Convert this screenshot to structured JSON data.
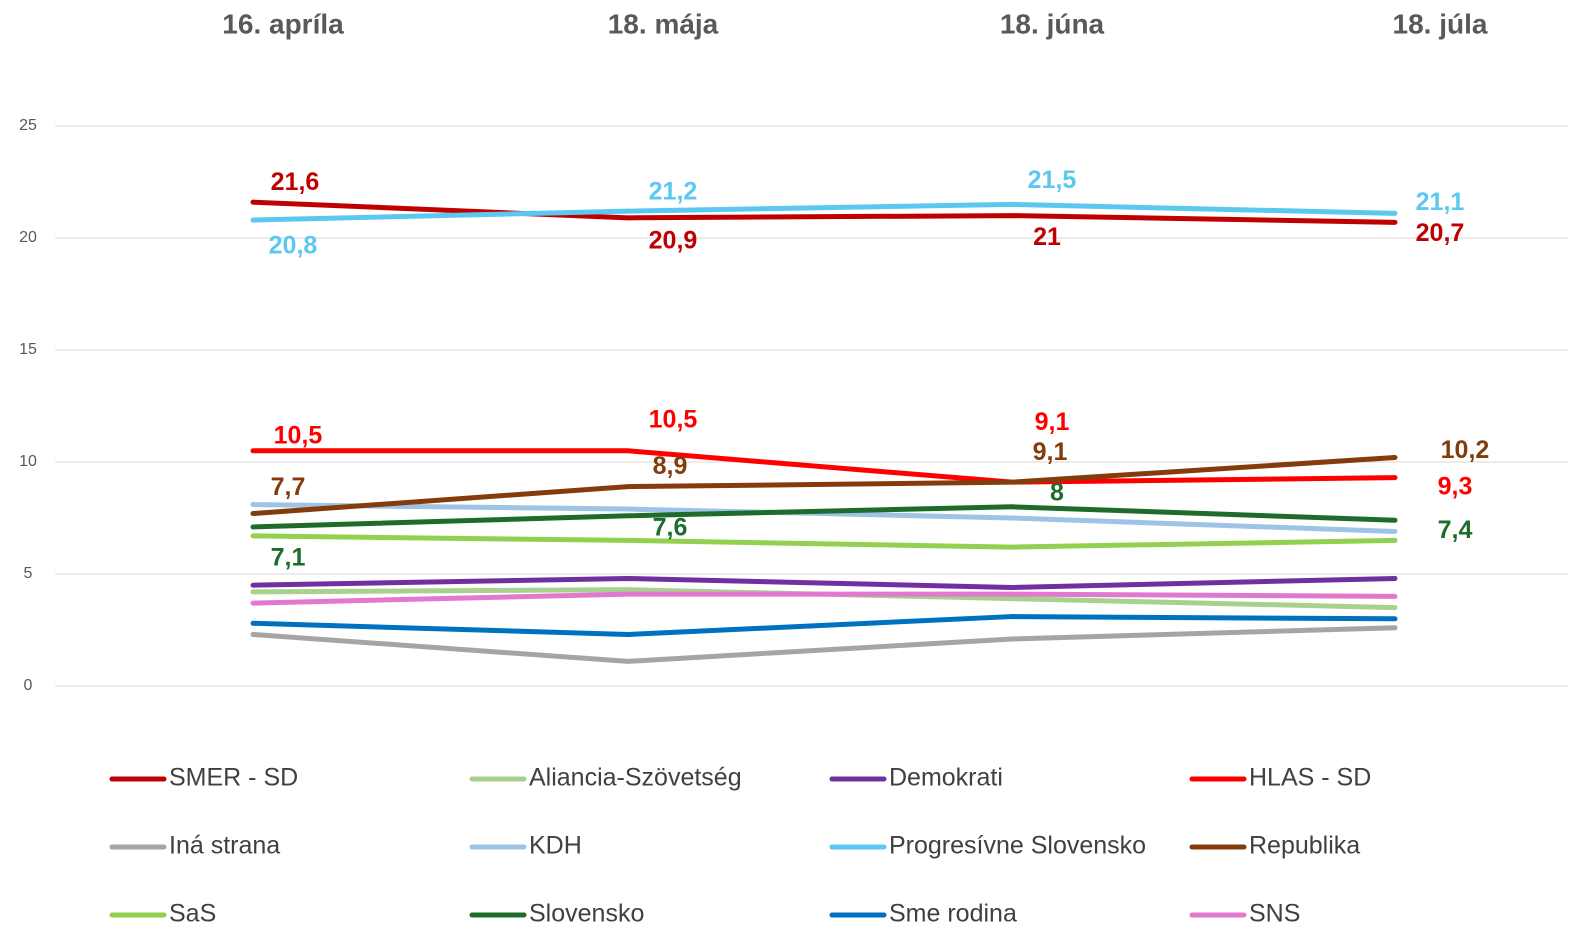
{
  "chart_data": {
    "type": "line",
    "categories": [
      "16. apríla",
      "18. mája",
      "18. júna",
      "18. júla"
    ],
    "ylim": [
      0,
      25
    ],
    "yticks": [
      0,
      5,
      10,
      15,
      20,
      25
    ],
    "grid": true,
    "legend": "bottom",
    "series": [
      {
        "name": "SMER - SD",
        "color": "#c00000",
        "values": [
          21.6,
          20.9,
          21,
          20.7
        ],
        "value_labels": [
          "21,6",
          "20,9",
          "21",
          "20,7"
        ]
      },
      {
        "name": "Aliancia-Szövetség",
        "color": "#a9d18e",
        "values": [
          4.2,
          4.3,
          3.9,
          3.5
        ]
      },
      {
        "name": "Demokrati",
        "color": "#7030a0",
        "values": [
          4.5,
          4.8,
          4.4,
          4.8
        ]
      },
      {
        "name": "HLAS - SD",
        "color": "#ff0000",
        "values": [
          10.5,
          10.5,
          9.1,
          9.3
        ],
        "value_labels": [
          "10,5",
          "10,5",
          "9,1",
          "9,3"
        ]
      },
      {
        "name": "Iná strana",
        "color": "#a5a5a5",
        "values": [
          2.3,
          1.1,
          2.1,
          2.6
        ]
      },
      {
        "name": "KDH",
        "color": "#9dc3e6",
        "values": [
          8.1,
          7.9,
          7.5,
          6.9
        ]
      },
      {
        "name": "Progresívne Slovensko",
        "color": "#5bc8f0",
        "values": [
          20.8,
          21.2,
          21.5,
          21.1
        ],
        "value_labels": [
          "20,8",
          "21,2",
          "21,5",
          "21,1"
        ]
      },
      {
        "name": "Republika",
        "color": "#843c0c",
        "values": [
          7.7,
          8.9,
          9.1,
          10.2
        ],
        "value_labels": [
          "7,7",
          "8,9",
          "9,1",
          "10,2"
        ]
      },
      {
        "name": "SaS",
        "color": "#92d050",
        "values": [
          6.7,
          6.5,
          6.2,
          6.5
        ]
      },
      {
        "name": "Slovensko",
        "color": "#1e6b2a",
        "values": [
          7.1,
          7.6,
          8,
          7.4
        ],
        "value_labels": [
          "7,1",
          "7,6",
          "8",
          "7,4"
        ]
      },
      {
        "name": "Sme rodina",
        "color": "#0070c0",
        "values": [
          2.8,
          2.3,
          3.1,
          3.0
        ]
      },
      {
        "name": "SNS",
        "color": "#e378d1",
        "values": [
          3.7,
          4.1,
          4.1,
          4.0
        ]
      }
    ]
  }
}
